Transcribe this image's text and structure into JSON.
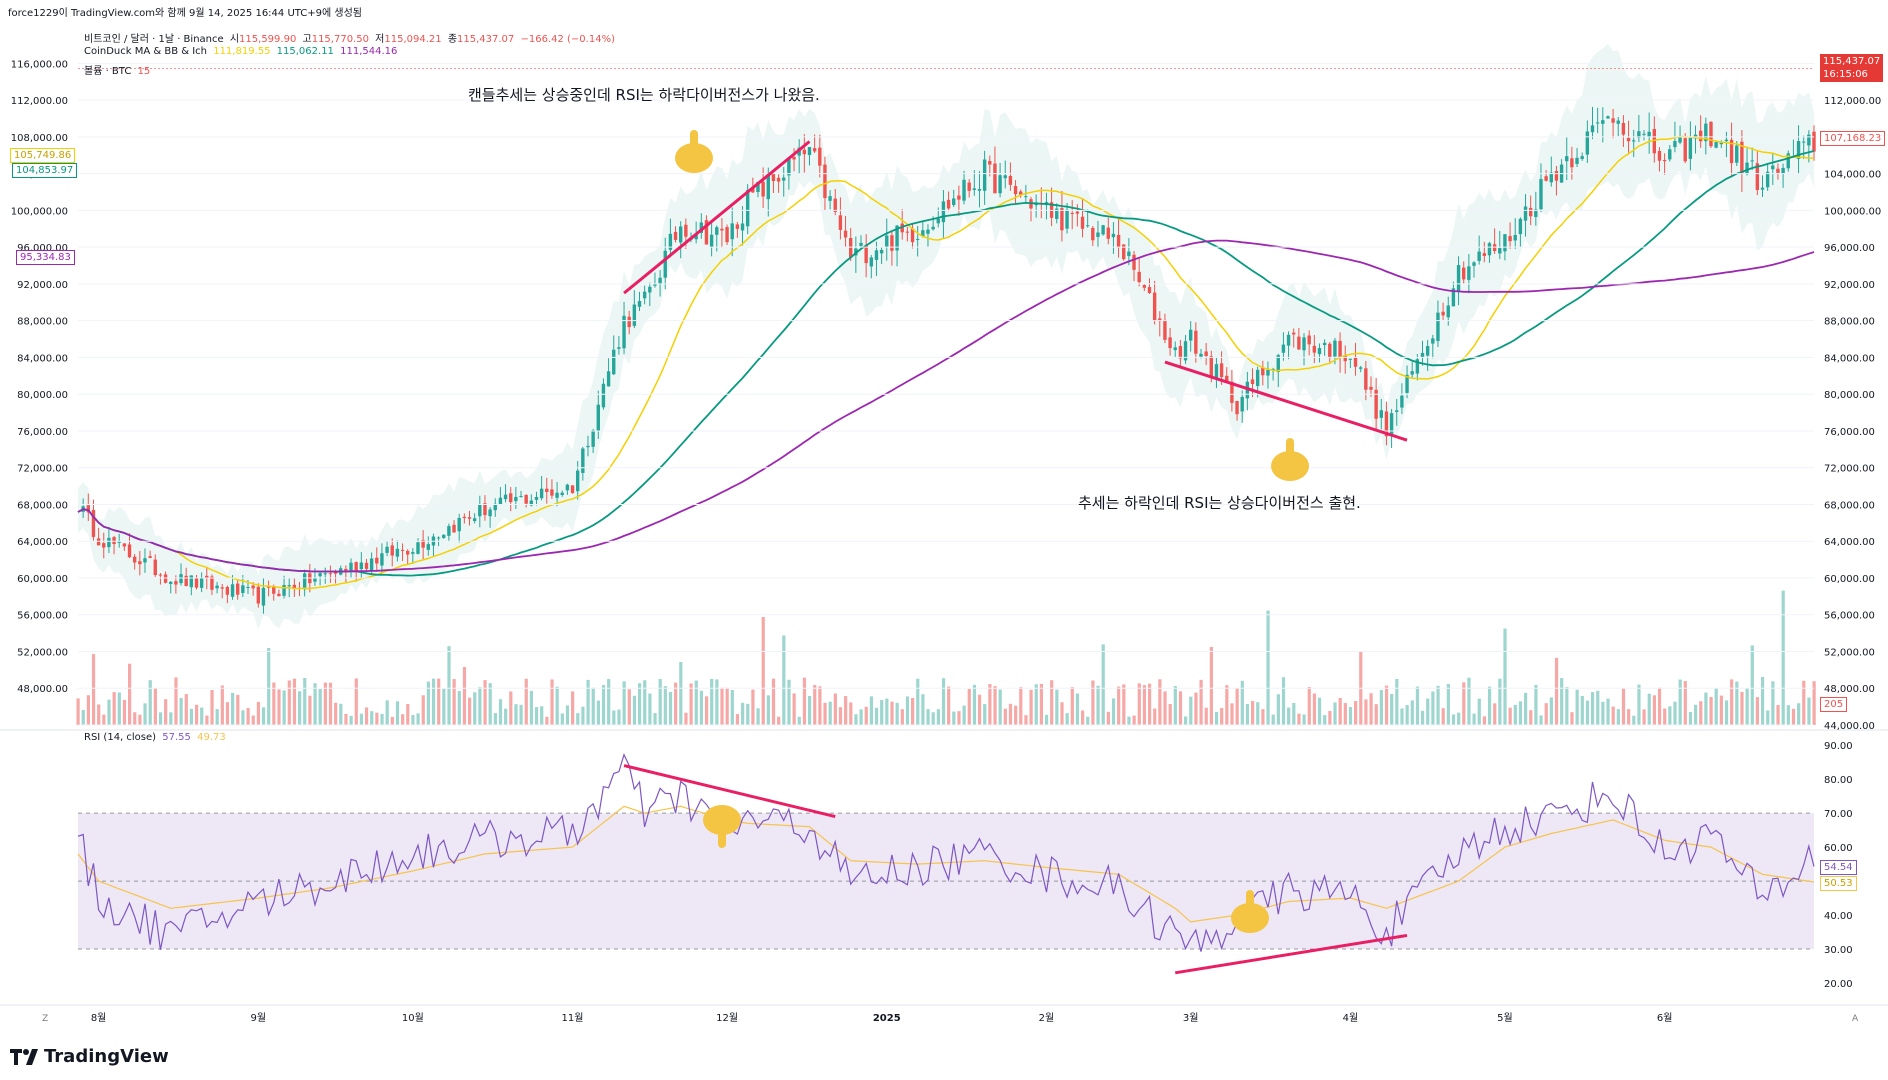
{
  "header": {
    "generated_line": "force1229이 TradingView.com와 함께 9월 14, 2025 16:44 UTC+9에 생성됨",
    "symbol_line": "비트코인 / 달러 · 1날 · Binance",
    "ohlc": {
      "o_label": "시",
      "o": "115,599.90",
      "h_label": "고",
      "h": "115,770.50",
      "l_label": "저",
      "l": "115,094.21",
      "c_label": "종",
      "c": "115,437.07",
      "chg": "−166.42 (−0.14%)"
    },
    "indicator_line": {
      "name": "CoinDuck MA & BB & Ich",
      "v1": "111,819.55",
      "v2": "115,062.11",
      "v3": "111,544.16"
    },
    "volume_line": {
      "name": "볼륨 · BTC",
      "value": "15"
    },
    "rsi_line": {
      "name": "RSI (14, close)",
      "v1": "57.55",
      "v2": "49.73"
    }
  },
  "price_axis_labels": [
    "116,000.00",
    "112,000.00",
    "108,000.00",
    "104,000.00",
    "100,000.00",
    "96,000.00",
    "92,000.00",
    "88,000.00",
    "84,000.00",
    "80,000.00",
    "76,000.00",
    "72,000.00",
    "68,000.00",
    "64,000.00",
    "60,000.00",
    "56,000.00",
    "52,000.00",
    "48,000.00",
    "44,000.00"
  ],
  "left_axis_labels": [
    "116,000.00",
    "112,000.00",
    "108,000.00",
    "104,000.00",
    "100,000.00",
    "96,000.00",
    "92,000.00",
    "88,000.00",
    "84,000.00",
    "80,000.00",
    "76,000.00",
    "72,000.00",
    "68,000.00",
    "64,000.00",
    "60,000.00",
    "56,000.00",
    "52,000.00",
    "48,000.00"
  ],
  "rsi_axis_labels": [
    "90.00",
    "80.00",
    "70.00",
    "60.00",
    "50.00",
    "40.00",
    "30.00",
    "20.00"
  ],
  "time_axis_labels": [
    "8월",
    "9월",
    "10월",
    "11월",
    "12월",
    "2025",
    "2월",
    "3월",
    "4월",
    "5월",
    "6월"
  ],
  "axis_corner_labels": {
    "left": "Z",
    "right": "A"
  },
  "price_badges": {
    "last_price": "115,437.07",
    "countdown": "16:15:06",
    "ma_right": "107,168.23",
    "volume_right": "205",
    "rsi_right_1": "54.54",
    "rsi_right_2": "50.53",
    "left_yellow": "105,749.86",
    "left_green": "104,853.97",
    "left_purple": "95,334.83"
  },
  "annotations": {
    "top_note": "캔들추세는 상승중인데 RSI는 하락다이버전스가 나왔음.",
    "bottom_note": "추세는 하락인데 RSI는 상승다이버전스 출현."
  },
  "brand": "TradingView",
  "colors": {
    "up": "#26a69a",
    "down": "#ef5350",
    "ma_fast": "#f5d000",
    "ma_mid": "#089981",
    "ma_slow": "#9c27b0",
    "divergence": "#e91e63",
    "rsi": "#7e57c2",
    "rsi_ma": "#f7c34a",
    "rsi_band": "#ede7f6",
    "bb_fill": "#e6f4f1"
  },
  "chart_data": {
    "type": "candlestick",
    "x": [
      "2024-07-28",
      "2024-08-01",
      "2024-08-15",
      "2024-09-01",
      "2024-09-15",
      "2024-10-01",
      "2024-10-15",
      "2024-11-01",
      "2024-11-11",
      "2024-11-15",
      "2024-11-22",
      "2024-12-01",
      "2024-12-05",
      "2024-12-17",
      "2024-12-25",
      "2025-01-07",
      "2025-01-20",
      "2025-02-01",
      "2025-02-15",
      "2025-02-26",
      "2025-03-01",
      "2025-03-10",
      "2025-03-20",
      "2025-04-01",
      "2025-04-08",
      "2025-04-22",
      "2025-05-01",
      "2025-05-10",
      "2025-05-22",
      "2025-06-01",
      "2025-06-10",
      "2025-06-20",
      "2025-06-30"
    ],
    "close": [
      68000,
      64500,
      60000,
      58000,
      60500,
      63500,
      67500,
      70000,
      88000,
      90000,
      98500,
      97000,
      101000,
      106500,
      95000,
      98000,
      104000,
      100000,
      96500,
      84500,
      86000,
      79000,
      86000,
      84500,
      76000,
      93500,
      96500,
      104000,
      110500,
      105500,
      108500,
      103000,
      107500
    ],
    "ylim": [
      44000,
      118000
    ],
    "series": [
      {
        "name": "RSI (14, close)",
        "values": [
          62,
          45,
          34,
          44,
          50,
          58,
          62,
          64,
          83,
          70,
          75,
          66,
          68,
          66,
          50,
          54,
          58,
          52,
          48,
          34,
          30,
          38,
          47,
          46,
          35,
          58,
          66,
          69,
          76,
          58,
          64,
          44,
          57.55
        ]
      },
      {
        "name": "RSI MA",
        "values": [
          58,
          50,
          42,
          45,
          48,
          53,
          58,
          60,
          72,
          70,
          72,
          68,
          67,
          66,
          56,
          55,
          56,
          54,
          52,
          42,
          38,
          40,
          44,
          45,
          42,
          50,
          60,
          64,
          68,
          62,
          60,
          52,
          49.73
        ]
      }
    ],
    "divergences": [
      {
        "panel": "price",
        "from": [
          "2024-11-11",
          91000
        ],
        "to": [
          "2024-12-17",
          107500
        ]
      },
      {
        "panel": "rsi",
        "from": [
          "2024-11-11",
          84
        ],
        "to": [
          "2024-12-22",
          69
        ]
      },
      {
        "panel": "price",
        "from": [
          "2025-02-24",
          83500
        ],
        "to": [
          "2025-04-12",
          75000
        ]
      },
      {
        "panel": "rsi",
        "from": [
          "2025-02-26",
          23
        ],
        "to": [
          "2025-04-12",
          34
        ]
      }
    ]
  }
}
